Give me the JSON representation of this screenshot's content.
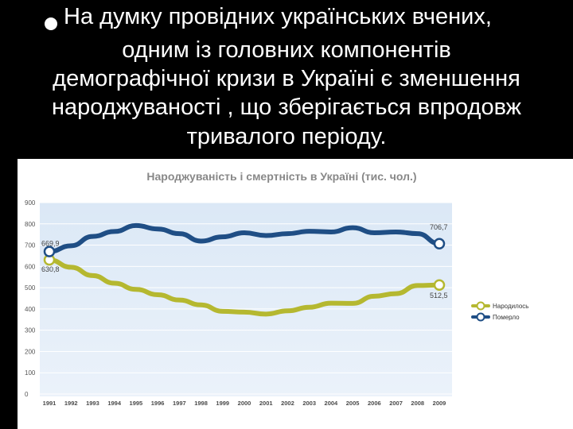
{
  "slide": {
    "lines": [
      "На думку провідних українських вчених,",
      "одним із головних компонентів",
      "демографічної кризи в Україні є зменшення",
      "народжуваності , що зберігається впродовж",
      "тривалого періоду."
    ]
  },
  "chart_data": {
    "type": "line",
    "title": "Народжуваність і смертність в Україні (тис. чол.)",
    "xlabel": "",
    "ylabel": "",
    "categories": [
      "1991",
      "1992",
      "1993",
      "1994",
      "1995",
      "1996",
      "1997",
      "1998",
      "1999",
      "2000",
      "2001",
      "2002",
      "2003",
      "2004",
      "2005",
      "2006",
      "2007",
      "2008",
      "2009"
    ],
    "ylim": [
      0,
      900
    ],
    "yticks": [
      "900",
      "800",
      "700",
      "600",
      "500",
      "400",
      "300",
      "200",
      "100",
      "0"
    ],
    "grid": true,
    "legend_position": "right",
    "series": [
      {
        "name": "Народилось",
        "color": "#b5b830",
        "values": [
          630.8,
          596,
          557,
          521,
          492,
          467,
          442,
          419,
          389,
          385,
          376,
          391,
          408,
          427,
          426,
          460,
          472,
          510,
          512.5
        ],
        "start_label": "630,8",
        "end_label": "512,5"
      },
      {
        "name": "Померло",
        "color": "#1f4e85",
        "values": [
          669.9,
          697,
          741,
          764,
          792,
          776,
          754,
          719,
          739,
          758,
          745,
          754,
          765,
          762,
          782,
          758,
          762,
          754,
          706.7
        ],
        "start_label": "669,9",
        "end_label": "706,7"
      }
    ]
  }
}
